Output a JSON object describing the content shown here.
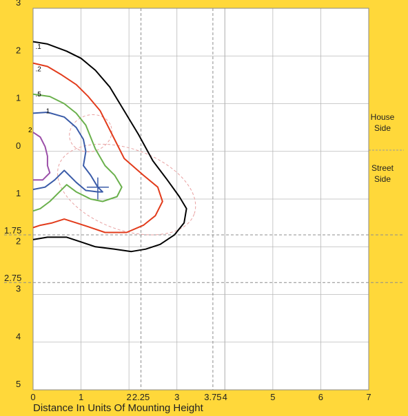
{
  "chart_data": {
    "type": "line",
    "xlabel": "Distance In Units Of Mounting Height",
    "xlim": [
      0,
      7
    ],
    "ylim": [
      -3,
      5
    ],
    "x_ticks": [
      {
        "value": 0,
        "label": "0"
      },
      {
        "value": 1,
        "label": "1"
      },
      {
        "value": 2,
        "label": "2"
      },
      {
        "value": 2.25,
        "label": "2.25"
      },
      {
        "value": 3,
        "label": "3"
      },
      {
        "value": 3.75,
        "label": "3.75"
      },
      {
        "value": 4,
        "label": "4"
      },
      {
        "value": 5,
        "label": "5"
      },
      {
        "value": 6,
        "label": "6"
      },
      {
        "value": 7,
        "label": "7"
      }
    ],
    "y_ticks": [
      {
        "value": -3,
        "label": "3"
      },
      {
        "value": -2,
        "label": "2"
      },
      {
        "value": -1,
        "label": "1"
      },
      {
        "value": 0,
        "label": "0"
      },
      {
        "value": 1,
        "label": "1"
      },
      {
        "value": 1.75,
        "label": "1.75"
      },
      {
        "value": 2,
        "label": "2"
      },
      {
        "value": 2.75,
        "label": "2.75"
      },
      {
        "value": 3,
        "label": "3"
      },
      {
        "value": 4,
        "label": "4"
      },
      {
        "value": 5,
        "label": "5"
      }
    ],
    "dashed_vertical_lines": [
      2.25,
      3.75
    ],
    "dashed_horizontal_lines": [
      1.75,
      2.75
    ],
    "house_side_label": "House Side",
    "street_side_label": "Street Side",
    "grid": true,
    "series": [
      {
        "name": ".1",
        "color": "#000000",
        "label_at": [
          0.05,
          -2.15
        ],
        "points": [
          [
            0,
            -2.3
          ],
          [
            0.3,
            -2.25
          ],
          [
            0.7,
            -2.1
          ],
          [
            1.0,
            -1.95
          ],
          [
            1.3,
            -1.7
          ],
          [
            1.6,
            -1.35
          ],
          [
            1.9,
            -0.85
          ],
          [
            2.2,
            -0.35
          ],
          [
            2.5,
            0.2
          ],
          [
            2.8,
            0.6
          ],
          [
            3.05,
            0.95
          ],
          [
            3.2,
            1.2
          ],
          [
            3.15,
            1.5
          ],
          [
            2.95,
            1.75
          ],
          [
            2.65,
            1.95
          ],
          [
            2.35,
            2.05
          ],
          [
            2.05,
            2.1
          ],
          [
            1.7,
            2.05
          ],
          [
            1.3,
            2.0
          ],
          [
            1.0,
            1.9
          ],
          [
            0.7,
            1.8
          ],
          [
            0.3,
            1.8
          ],
          [
            0,
            1.85
          ]
        ]
      },
      {
        "name": ".2",
        "color": "#e23b1b",
        "label_at": [
          0.05,
          -1.68
        ],
        "points": [
          [
            0,
            -1.85
          ],
          [
            0.3,
            -1.78
          ],
          [
            0.6,
            -1.6
          ],
          [
            0.9,
            -1.4
          ],
          [
            1.15,
            -1.15
          ],
          [
            1.4,
            -0.85
          ],
          [
            1.65,
            -0.35
          ],
          [
            1.9,
            0.15
          ],
          [
            2.3,
            0.5
          ],
          [
            2.6,
            0.75
          ],
          [
            2.7,
            1.05
          ],
          [
            2.55,
            1.35
          ],
          [
            2.3,
            1.55
          ],
          [
            1.95,
            1.7
          ],
          [
            1.5,
            1.7
          ],
          [
            1.15,
            1.58
          ],
          [
            0.9,
            1.5
          ],
          [
            0.65,
            1.42
          ],
          [
            0.4,
            1.5
          ],
          [
            0.15,
            1.55
          ],
          [
            0,
            1.6
          ]
        ]
      },
      {
        "name": ".5",
        "color": "#6ab04c",
        "label_at": [
          0.05,
          -1.15
        ],
        "points": [
          [
            0,
            -1.2
          ],
          [
            0.35,
            -1.15
          ],
          [
            0.65,
            -1.0
          ],
          [
            0.9,
            -0.8
          ],
          [
            1.1,
            -0.55
          ],
          [
            1.3,
            -0.05
          ],
          [
            1.5,
            0.3
          ],
          [
            1.7,
            0.5
          ],
          [
            1.85,
            0.75
          ],
          [
            1.75,
            0.95
          ],
          [
            1.45,
            1.05
          ],
          [
            1.2,
            1.0
          ],
          [
            0.9,
            0.85
          ],
          [
            0.7,
            0.7
          ],
          [
            0.55,
            0.85
          ],
          [
            0.35,
            1.05
          ],
          [
            0.15,
            1.2
          ],
          [
            0,
            1.25
          ]
        ]
      },
      {
        "name": "1",
        "color": "#3a5ba8",
        "label_at": [
          0.27,
          -0.8
        ],
        "points": [
          [
            0,
            -0.8
          ],
          [
            0.3,
            -0.82
          ],
          [
            0.65,
            -0.72
          ],
          [
            0.9,
            -0.5
          ],
          [
            1.05,
            -0.25
          ],
          [
            1.1,
            0.0
          ],
          [
            1.05,
            0.3
          ],
          [
            1.2,
            0.5
          ],
          [
            1.35,
            0.75
          ],
          [
            1.45,
            0.85
          ],
          [
            1.35,
            0.85
          ],
          [
            1.1,
            0.82
          ],
          [
            0.9,
            0.65
          ],
          [
            0.65,
            0.4
          ],
          [
            0.45,
            0.6
          ],
          [
            0.25,
            0.75
          ],
          [
            0,
            0.8
          ]
        ],
        "crosshair": [
          1.35,
          0.75
        ]
      },
      {
        "name": "2",
        "color": "#9b4fa8",
        "label_at": [
          -0.1,
          -0.4
        ],
        "points": [
          [
            0,
            -0.4
          ],
          [
            0.15,
            -0.3
          ],
          [
            0.25,
            -0.1
          ],
          [
            0.3,
            0.1
          ],
          [
            0.3,
            0.3
          ],
          [
            0.35,
            0.45
          ],
          [
            0.2,
            0.6
          ],
          [
            0,
            0.6
          ]
        ]
      }
    ],
    "reference_ellipses": [
      {
        "cx": 1.2,
        "cy": -0.38,
        "rx": 0.45,
        "ry": 0.38,
        "angle": -20,
        "color": "#e8a0a0"
      },
      {
        "cx": 1.95,
        "cy": 0.8,
        "rx": 1.5,
        "ry": 0.85,
        "angle": 20,
        "color": "#e8a0a0"
      }
    ]
  }
}
